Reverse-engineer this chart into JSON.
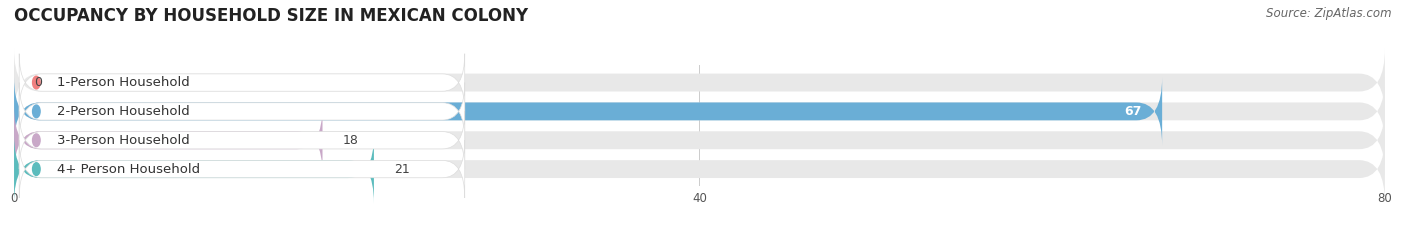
{
  "title": "OCCUPANCY BY HOUSEHOLD SIZE IN MEXICAN COLONY",
  "source": "Source: ZipAtlas.com",
  "categories": [
    "1-Person Household",
    "2-Person Household",
    "3-Person Household",
    "4+ Person Household"
  ],
  "values": [
    0,
    67,
    18,
    21
  ],
  "bar_colors": [
    "#f08080",
    "#6aaed6",
    "#c9a8c8",
    "#5bbcbd"
  ],
  "bg_bar_color": "#e8e8e8",
  "xlim": [
    0,
    80
  ],
  "xticks": [
    0,
    40,
    80
  ],
  "background_color": "#ffffff",
  "title_fontsize": 12,
  "label_fontsize": 9.5,
  "value_fontsize": 9,
  "source_fontsize": 8.5,
  "bar_height": 0.62,
  "bar_gap": 0.08
}
